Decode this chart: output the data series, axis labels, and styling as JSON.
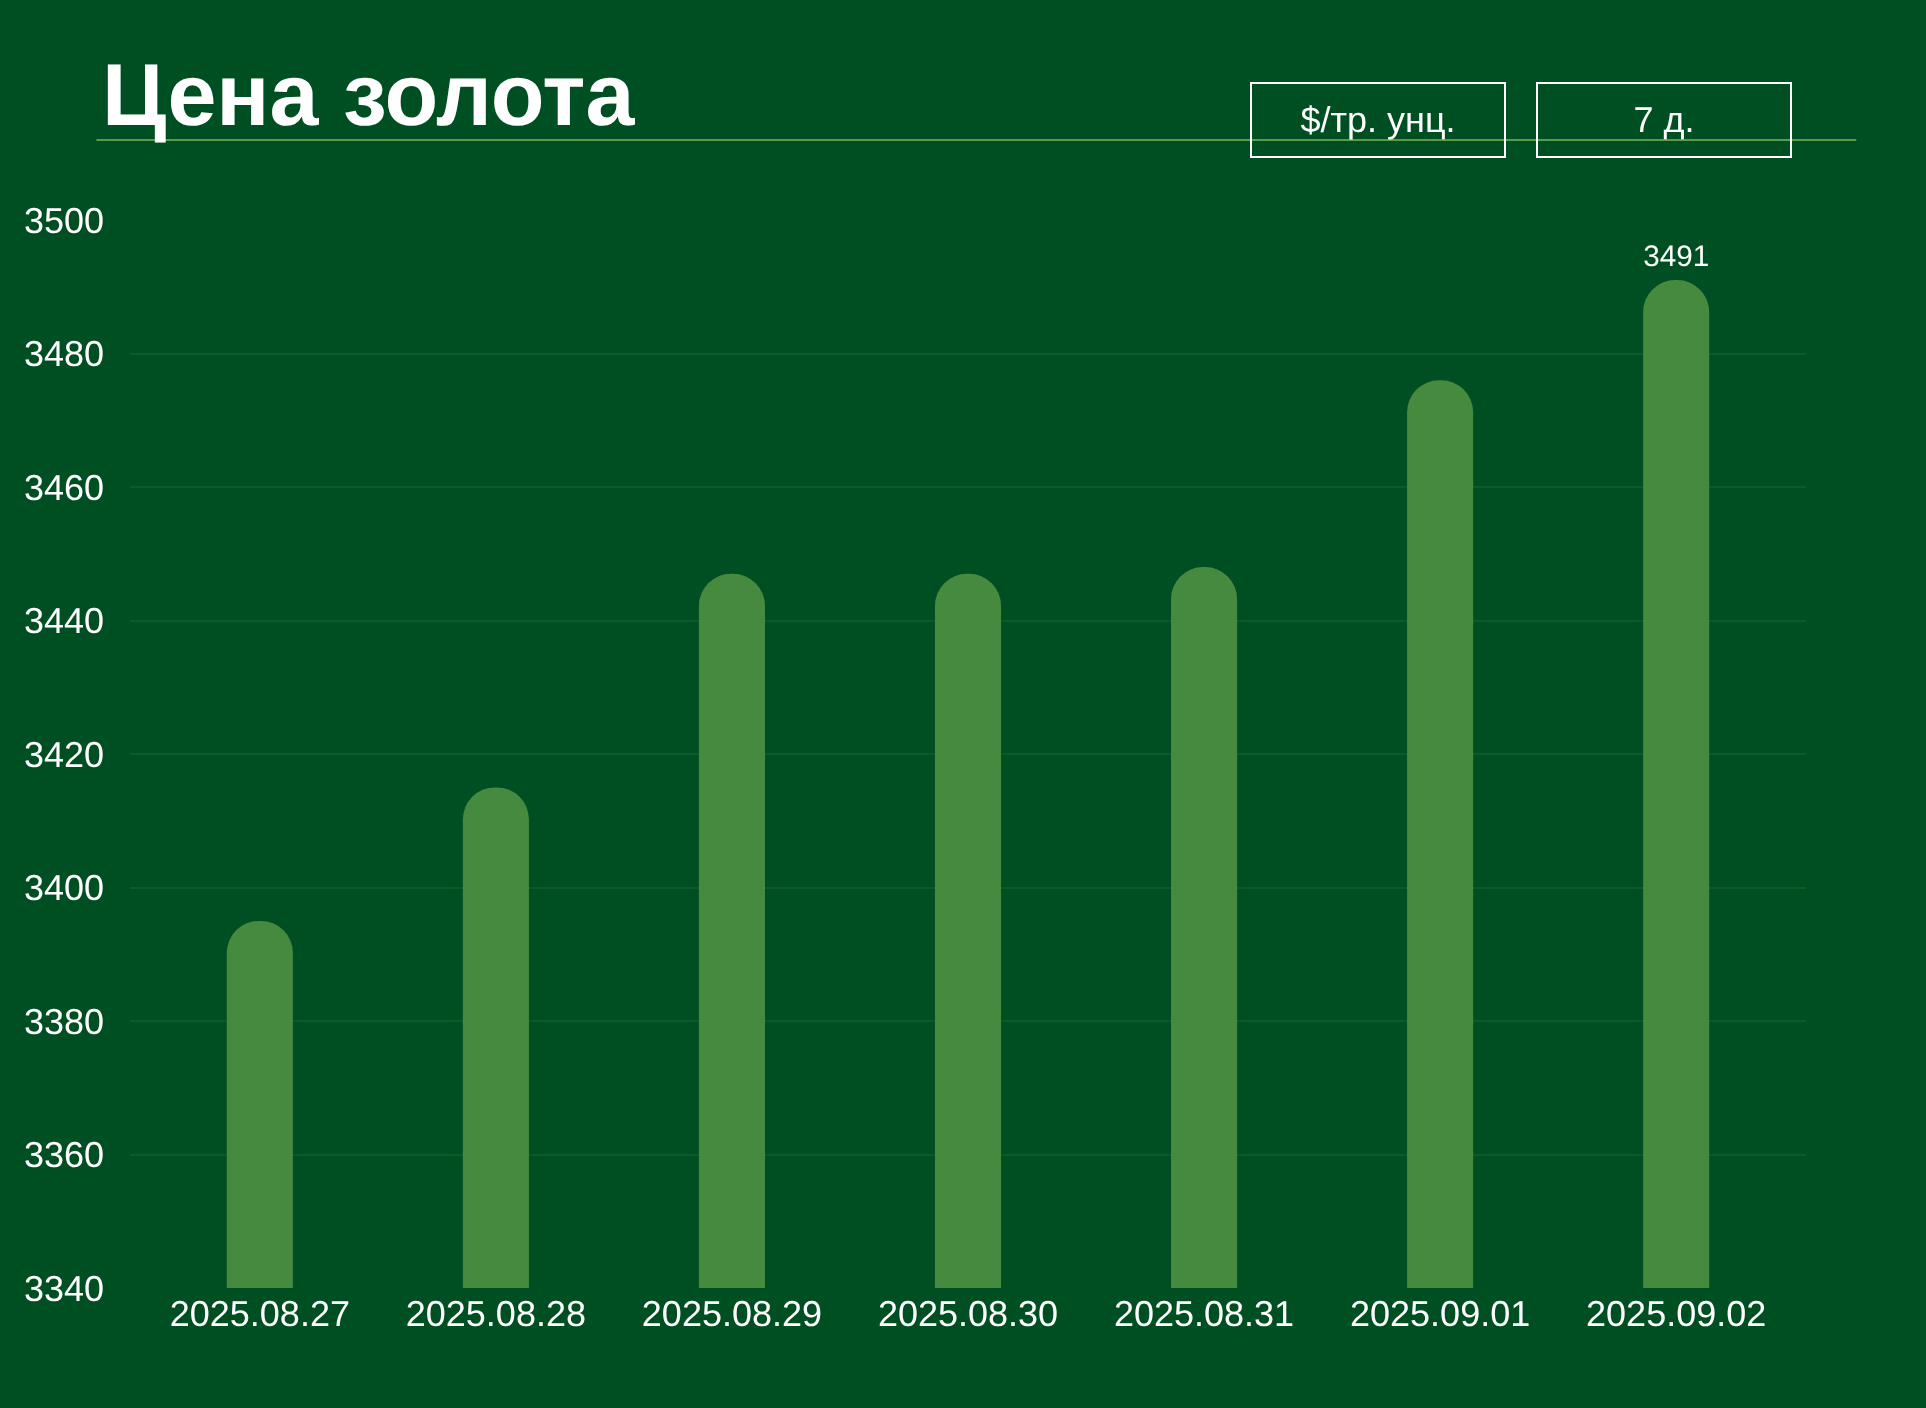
{
  "chart_data": {
    "type": "bar",
    "title": "Цена золота",
    "annotations": [
      "$/тр. унц.",
      "7 д."
    ],
    "categories": [
      "2025.08.27",
      "2025.08.28",
      "2025.08.29",
      "2025.08.30",
      "2025.08.31",
      "2025.09.01",
      "2025.09.02"
    ],
    "values": [
      3395,
      3415,
      3447,
      3447,
      3448,
      3476,
      3491
    ],
    "value_labels": [
      null,
      null,
      null,
      null,
      null,
      null,
      "3491"
    ],
    "color": "#468a40",
    "ylim": [
      3340,
      3500
    ],
    "yticks": [
      3340,
      3360,
      3380,
      3400,
      3420,
      3440,
      3460,
      3480,
      3500
    ],
    "grid": "y",
    "legend": false
  }
}
